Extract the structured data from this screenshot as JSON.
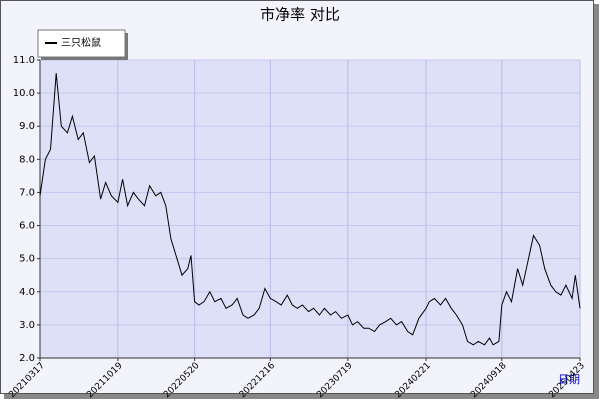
{
  "chart_data": {
    "type": "line",
    "title": "市净率  对比",
    "x_label": "日期",
    "x": [
      "20210317",
      "20210401",
      "20210415",
      "20210501",
      "20210515",
      "20210601",
      "20210615",
      "20210701",
      "20210715",
      "20210801",
      "20210815",
      "20210901",
      "20210915",
      "20211001",
      "20211019",
      "20211101",
      "20211115",
      "20211201",
      "20211215",
      "20220101",
      "20220115",
      "20220201",
      "20220215",
      "20220301",
      "20220315",
      "20220401",
      "20220415",
      "20220501",
      "20220510",
      "20220520",
      "20220601",
      "20220615",
      "20220701",
      "20220715",
      "20220801",
      "20220815",
      "20220901",
      "20220915",
      "20221001",
      "20221015",
      "20221101",
      "20221115",
      "20221201",
      "20221216",
      "20230101",
      "20230115",
      "20230201",
      "20230215",
      "20230301",
      "20230315",
      "20230401",
      "20230415",
      "20230501",
      "20230515",
      "20230601",
      "20230615",
      "20230701",
      "20230719",
      "20230801",
      "20230815",
      "20230901",
      "20230915",
      "20231001",
      "20231015",
      "20231101",
      "20231115",
      "20231201",
      "20231215",
      "20240101",
      "20240115",
      "20240201",
      "20240221",
      "20240301",
      "20240315",
      "20240401",
      "20240415",
      "20240501",
      "20240515",
      "20240601",
      "20240615",
      "20240701",
      "20240715",
      "20240801",
      "20240815",
      "20240825",
      "20240910",
      "20240918",
      "20241001",
      "20241015",
      "20241101",
      "20241115",
      "20241201",
      "20241215",
      "20250101",
      "20250115",
      "20250201",
      "20250215",
      "20250301",
      "20250315",
      "20250401",
      "20250410",
      "20250423"
    ],
    "series": [
      {
        "name": "三只松鼠",
        "color": "#000000",
        "values": [
          6.9,
          8.0,
          8.3,
          10.6,
          9.0,
          8.8,
          9.3,
          8.6,
          8.8,
          7.9,
          8.1,
          6.8,
          7.3,
          6.9,
          6.7,
          7.4,
          6.6,
          7.0,
          6.8,
          6.6,
          7.2,
          6.9,
          7.0,
          6.6,
          5.6,
          5.0,
          4.5,
          4.7,
          5.1,
          3.7,
          3.6,
          3.7,
          4.0,
          3.7,
          3.8,
          3.5,
          3.6,
          3.8,
          3.3,
          3.2,
          3.3,
          3.5,
          4.1,
          3.8,
          3.7,
          3.6,
          3.9,
          3.6,
          3.5,
          3.6,
          3.4,
          3.5,
          3.3,
          3.5,
          3.3,
          3.4,
          3.2,
          3.3,
          3.0,
          3.1,
          2.9,
          2.9,
          2.8,
          3.0,
          3.1,
          3.2,
          3.0,
          3.1,
          2.8,
          2.7,
          3.2,
          3.5,
          3.7,
          3.8,
          3.6,
          3.8,
          3.5,
          3.3,
          3.0,
          2.5,
          2.4,
          2.5,
          2.4,
          2.6,
          2.4,
          2.5,
          3.6,
          4.0,
          3.7,
          4.7,
          4.2,
          5.0,
          5.7,
          5.4,
          4.7,
          4.2,
          4.0,
          3.9,
          4.2,
          3.8,
          4.5,
          3.5
        ]
      }
    ],
    "xlim": [
      "20210317",
      "20250423"
    ],
    "xticks": [
      "20210317",
      "20211019",
      "20220520",
      "20221216",
      "20230719",
      "20240221",
      "20240918",
      "20250423"
    ],
    "ylim": [
      2,
      11
    ],
    "yticks": [
      {
        "value": 2,
        "label": "2.0"
      },
      {
        "value": 3,
        "label": "3.0"
      },
      {
        "value": 4,
        "label": "4.0"
      },
      {
        "value": 5,
        "label": "5.0"
      },
      {
        "value": 6,
        "label": "6.0"
      },
      {
        "value": 7,
        "label": "7.0"
      },
      {
        "value": 8,
        "label": "8.0"
      },
      {
        "value": 9,
        "label": "9.0"
      },
      {
        "value": 10,
        "label": "10.0"
      },
      {
        "value": 11,
        "label": "11.0"
      }
    ],
    "grid": true
  }
}
